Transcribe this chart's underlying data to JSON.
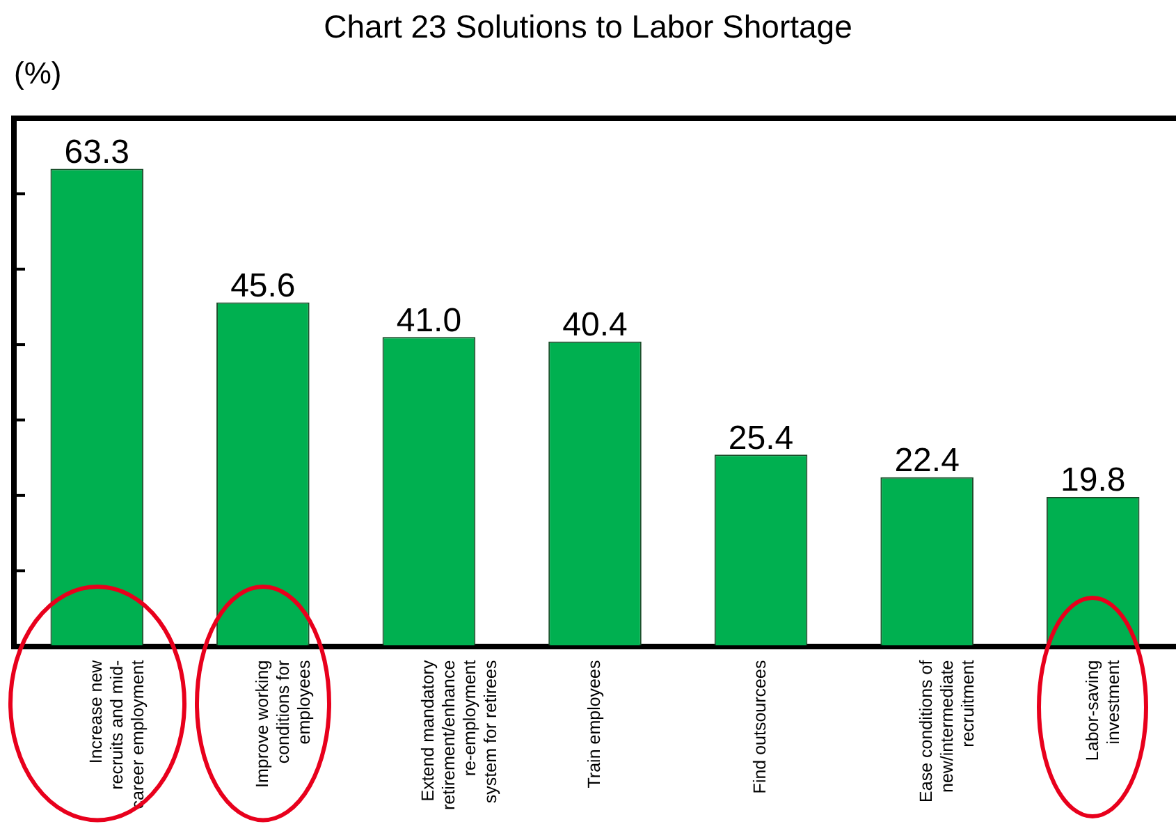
{
  "chart_data": {
    "type": "bar",
    "title": "Chart 23  Solutions to Labor Shortage",
    "ylabel": "(%)",
    "categories": [
      "Increase new recruits and mid-career employment",
      "Improve working conditions for employees",
      "Extend mandatory retirement/enhance re-employment system for retirees",
      "Train employees",
      "Find outsourcees",
      "Ease conditions of new/intermediate recruitment",
      "Labor-saving investment"
    ],
    "values": [
      63.3,
      45.6,
      41.0,
      40.4,
      25.4,
      22.4,
      19.8
    ],
    "value_labels": [
      "63.3",
      "45.6",
      "41.0",
      "40.4",
      "25.4",
      "22.4",
      "19.8"
    ],
    "color": "#00b050",
    "ylim": [
      0,
      70
    ],
    "yticks": [
      {
        "value": 0,
        "label": null
      },
      {
        "value": 10,
        "label": null
      },
      {
        "value": 20,
        "label": null
      },
      {
        "value": 30,
        "label": null
      },
      {
        "value": 40,
        "label": null
      },
      {
        "value": 50,
        "label": null
      },
      {
        "value": 60,
        "label": null
      },
      {
        "value": 70,
        "label": null
      }
    ],
    "tick_labels": "x",
    "grid": false,
    "legend": false
  }
}
